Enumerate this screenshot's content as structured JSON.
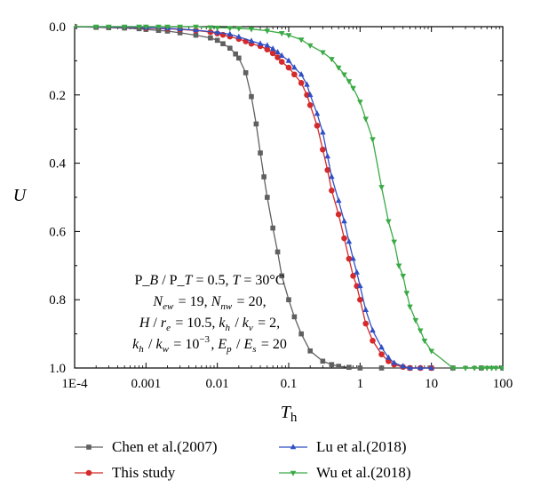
{
  "chart_data": {
    "type": "line",
    "xscale": "log",
    "xlim": [
      0.0001,
      100
    ],
    "ylim": [
      0.0,
      1.0
    ],
    "y_inverted": true,
    "xlabel": "T",
    "xlabel_sub": "h",
    "ylabel": "U",
    "x_tick_labels": [
      "1E-4",
      "0.001",
      "0.01",
      "0.1",
      "1",
      "10",
      "100"
    ],
    "x_tick_values": [
      0.0001,
      0.001,
      0.01,
      0.1,
      1,
      10,
      100
    ],
    "y_tick_labels": [
      "0.0",
      "0.2",
      "0.4",
      "0.6",
      "0.8",
      "1.0"
    ],
    "y_tick_values": [
      0.0,
      0.2,
      0.4,
      0.6,
      0.8,
      1.0
    ],
    "grid": false,
    "legend_position": "bottom",
    "annotation_lines": [
      "P_B / P_T = 0.5, T = 30°C",
      "N_ew = 19, N_nw = 20,",
      "H / r_e = 10.5, k_h / k_v = 2,",
      "k_h / k_w = 10^−3, E_p / E_s = 20"
    ],
    "series": [
      {
        "name": "Chen et al.(2007)",
        "color": "#606060",
        "marker": "square",
        "x": [
          0.0001,
          0.0002,
          0.0003,
          0.0005,
          0.0008,
          0.001,
          0.0015,
          0.002,
          0.003,
          0.005,
          0.008,
          0.01,
          0.012,
          0.015,
          0.018,
          0.02,
          0.025,
          0.03,
          0.035,
          0.04,
          0.045,
          0.05,
          0.06,
          0.07,
          0.08,
          0.1,
          0.12,
          0.15,
          0.2,
          0.3,
          0.4,
          0.5,
          0.7,
          1,
          2,
          5,
          10,
          20,
          50,
          100
        ],
        "y": [
          0.0,
          0.002,
          0.003,
          0.004,
          0.006,
          0.008,
          0.011,
          0.013,
          0.018,
          0.025,
          0.033,
          0.04,
          0.05,
          0.063,
          0.08,
          0.092,
          0.135,
          0.205,
          0.285,
          0.37,
          0.44,
          0.5,
          0.59,
          0.66,
          0.73,
          0.8,
          0.85,
          0.9,
          0.95,
          0.98,
          0.99,
          0.995,
          0.998,
          1.0,
          1.0,
          1.0,
          1.0,
          1.0,
          1.0,
          1.0
        ]
      },
      {
        "name": "This study",
        "color": "#d42a2a",
        "marker": "circle",
        "x": [
          0.0001,
          0.001,
          0.002,
          0.003,
          0.005,
          0.008,
          0.01,
          0.012,
          0.015,
          0.02,
          0.025,
          0.03,
          0.04,
          0.05,
          0.06,
          0.07,
          0.08,
          0.1,
          0.12,
          0.15,
          0.18,
          0.2,
          0.25,
          0.3,
          0.35,
          0.4,
          0.5,
          0.6,
          0.7,
          0.8,
          0.9,
          1.0,
          1.2,
          1.5,
          2,
          2.5,
          3,
          4,
          5,
          7,
          10
        ],
        "y": [
          0.0,
          0.004,
          0.006,
          0.008,
          0.011,
          0.016,
          0.02,
          0.024,
          0.029,
          0.036,
          0.043,
          0.05,
          0.057,
          0.067,
          0.078,
          0.09,
          0.103,
          0.12,
          0.14,
          0.165,
          0.2,
          0.23,
          0.29,
          0.36,
          0.42,
          0.48,
          0.55,
          0.62,
          0.68,
          0.73,
          0.76,
          0.8,
          0.87,
          0.92,
          0.96,
          0.98,
          0.99,
          0.997,
          1.0,
          1.0,
          1.0
        ]
      },
      {
        "name": "Lu et al.(2018)",
        "color": "#2f4fc4",
        "marker": "triangle-up",
        "x": [
          0.0001,
          0.001,
          0.002,
          0.003,
          0.005,
          0.01,
          0.015,
          0.02,
          0.03,
          0.04,
          0.05,
          0.06,
          0.07,
          0.08,
          0.1,
          0.12,
          0.15,
          0.18,
          0.2,
          0.25,
          0.3,
          0.35,
          0.4,
          0.5,
          0.6,
          0.7,
          0.8,
          0.9,
          1.0,
          1.2,
          1.5,
          2,
          2.5,
          3,
          4,
          5,
          7,
          10
        ],
        "y": [
          0.0,
          0.003,
          0.005,
          0.007,
          0.01,
          0.017,
          0.022,
          0.03,
          0.042,
          0.05,
          0.055,
          0.065,
          0.075,
          0.085,
          0.1,
          0.12,
          0.14,
          0.17,
          0.2,
          0.255,
          0.31,
          0.38,
          0.44,
          0.51,
          0.57,
          0.63,
          0.68,
          0.72,
          0.76,
          0.83,
          0.89,
          0.94,
          0.97,
          0.985,
          0.995,
          1.0,
          1.0,
          1.0
        ]
      },
      {
        "name": "Wu et al.(2018)",
        "color": "#3aaa45",
        "marker": "triangle-down",
        "x": [
          0.0001,
          0.0002,
          0.0003,
          0.0005,
          0.0008,
          0.001,
          0.0015,
          0.002,
          0.003,
          0.005,
          0.008,
          0.01,
          0.015,
          0.02,
          0.03,
          0.05,
          0.08,
          0.1,
          0.15,
          0.2,
          0.3,
          0.4,
          0.5,
          0.6,
          0.7,
          0.8,
          1.0,
          1.2,
          1.5,
          2,
          2.5,
          3,
          3.5,
          4,
          4.5,
          5,
          6,
          7,
          8,
          10,
          20,
          30,
          40,
          50,
          60,
          70,
          80,
          100
        ],
        "y": [
          0.0,
          0.0,
          0.0,
          0.0,
          0.0,
          0.0,
          0.0,
          0.0,
          0.0,
          0.0,
          0.002,
          0.003,
          0.004,
          0.005,
          0.007,
          0.012,
          0.019,
          0.025,
          0.038,
          0.055,
          0.075,
          0.095,
          0.12,
          0.14,
          0.16,
          0.18,
          0.22,
          0.27,
          0.33,
          0.47,
          0.57,
          0.63,
          0.7,
          0.73,
          0.78,
          0.82,
          0.86,
          0.89,
          0.92,
          0.95,
          1.0,
          1.0,
          1.0,
          1.0,
          1.0,
          1.0,
          1.0,
          1.0
        ]
      }
    ]
  }
}
